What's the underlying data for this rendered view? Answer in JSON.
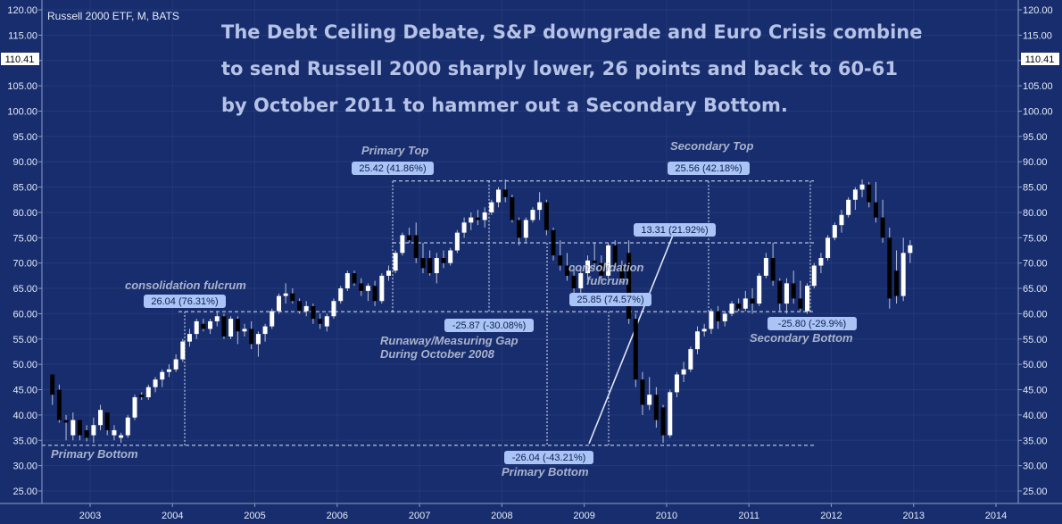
{
  "symbol_label": "Russell 2000 ETF, M, BATS",
  "title_lines": [
    "The Debt Ceiling Debate, S&P downgrade and Euro Crisis combine",
    "to send Russell 2000 sharply lower, 26 points and back to 60-61",
    "by October 2011 to hammer out a Secondary Bottom."
  ],
  "colors": {
    "background": "#172d6e",
    "grid_line": "#ffffff",
    "up_candle": "#ffffff",
    "down_candle": "#000000",
    "badge": "#a9c4f5",
    "annotation": "#a9b3cc"
  },
  "price_tag": "110.41",
  "annotations": {
    "primary_top": "Primary Top",
    "secondary_top": "Secondary Top",
    "consolidation_1": "consolidation fulcrum",
    "consolidation_2_line1": "consolidation",
    "consolidation_2_line2": "fulcrum",
    "runaway_line1": "Runaway/Measuring Gap",
    "runaway_line2": "During October 2008",
    "primary_bottom_left": "Primary Bottom",
    "primary_bottom_right": "Primary Bottom",
    "secondary_bottom": "Secondary Bottom"
  },
  "badges": {
    "b1": "26.04 (76.31%)",
    "b2": "25.42 (41.86%)",
    "b3": "-25.87 (-30.08%)",
    "b4": "-26.04 (-43.21%)",
    "b5": "25.85 (74.57%)",
    "b6": "13.31 (21.92%)",
    "b7": "25.56 (42.18%)",
    "b8": "-25.80 (-29.9%)"
  },
  "chart_data": {
    "type": "candlestick",
    "ylim": [
      22,
      121
    ],
    "y_ticks": [
      "25.00",
      "30.00",
      "35.00",
      "40.00",
      "45.00",
      "50.00",
      "55.00",
      "60.00",
      "65.00",
      "70.00",
      "75.00",
      "80.00",
      "85.00",
      "90.00",
      "95.00",
      "100.00",
      "105.00",
      "110.00",
      "115.00",
      "120.00"
    ],
    "x_ticks": [
      "2003",
      "2004",
      "2005",
      "2006",
      "2007",
      "2008",
      "2009",
      "2010",
      "2011",
      "2012",
      "2013",
      "2014"
    ],
    "horizontal_levels": [
      86.2,
      74.0,
      60.4,
      34.0
    ],
    "candles": [
      {
        "t": 2002.542,
        "o": 48.0,
        "h": 48.0,
        "l": 42.0,
        "c": 44.0
      },
      {
        "t": 2002.625,
        "o": 45.0,
        "h": 46.0,
        "l": 38.5,
        "c": 39.0
      },
      {
        "t": 2002.708,
        "o": 39.0,
        "h": 40.0,
        "l": 35.0,
        "c": 38.5
      },
      {
        "t": 2002.792,
        "o": 36.0,
        "h": 40.5,
        "l": 35.0,
        "c": 39.0
      },
      {
        "t": 2002.875,
        "o": 39.0,
        "h": 39.0,
        "l": 35.0,
        "c": 36.0
      },
      {
        "t": 2002.958,
        "o": 37.0,
        "h": 38.0,
        "l": 34.8,
        "c": 35.5
      },
      {
        "t": 2003.042,
        "o": 36.0,
        "h": 39.5,
        "l": 34.5,
        "c": 38.0
      },
      {
        "t": 2003.125,
        "o": 38.0,
        "h": 42.0,
        "l": 37.0,
        "c": 41.0
      },
      {
        "t": 2003.208,
        "o": 40.5,
        "h": 40.5,
        "l": 36.0,
        "c": 37.0
      },
      {
        "t": 2003.292,
        "o": 36.0,
        "h": 38.0,
        "l": 35.0,
        "c": 37.0
      },
      {
        "t": 2003.375,
        "o": 35.5,
        "h": 36.5,
        "l": 34.5,
        "c": 36.0
      },
      {
        "t": 2003.458,
        "o": 36.0,
        "h": 40.0,
        "l": 35.5,
        "c": 39.5
      },
      {
        "t": 2003.542,
        "o": 39.5,
        "h": 44.0,
        "l": 39.0,
        "c": 43.5
      },
      {
        "t": 2003.625,
        "o": 44.0,
        "h": 44.5,
        "l": 43.0,
        "c": 43.5
      },
      {
        "t": 2003.708,
        "o": 43.5,
        "h": 46.0,
        "l": 43.0,
        "c": 45.5
      },
      {
        "t": 2003.792,
        "o": 45.5,
        "h": 47.5,
        "l": 44.5,
        "c": 47.0
      },
      {
        "t": 2003.875,
        "o": 47.0,
        "h": 49.0,
        "l": 45.5,
        "c": 48.5
      },
      {
        "t": 2003.958,
        "o": 48.5,
        "h": 50.0,
        "l": 47.5,
        "c": 49.0
      },
      {
        "t": 2004.042,
        "o": 49.0,
        "h": 52.0,
        "l": 48.5,
        "c": 51.0
      },
      {
        "t": 2004.125,
        "o": 51.0,
        "h": 55.0,
        "l": 50.5,
        "c": 54.5
      },
      {
        "t": 2004.208,
        "o": 54.5,
        "h": 57.0,
        "l": 53.5,
        "c": 56.0
      },
      {
        "t": 2004.292,
        "o": 56.0,
        "h": 59.0,
        "l": 55.0,
        "c": 58.5
      },
      {
        "t": 2004.375,
        "o": 58.0,
        "h": 59.0,
        "l": 56.5,
        "c": 57.0
      },
      {
        "t": 2004.458,
        "o": 57.0,
        "h": 59.0,
        "l": 56.0,
        "c": 58.5
      },
      {
        "t": 2004.542,
        "o": 58.5,
        "h": 60.5,
        "l": 57.5,
        "c": 59.5
      },
      {
        "t": 2004.625,
        "o": 59.5,
        "h": 60.0,
        "l": 55.0,
        "c": 55.5
      },
      {
        "t": 2004.708,
        "o": 55.5,
        "h": 59.5,
        "l": 55.0,
        "c": 59.0
      },
      {
        "t": 2004.792,
        "o": 59.0,
        "h": 59.5,
        "l": 54.0,
        "c": 56.5
      },
      {
        "t": 2004.875,
        "o": 56.5,
        "h": 58.0,
        "l": 55.5,
        "c": 57.0
      },
      {
        "t": 2004.958,
        "o": 57.0,
        "h": 58.5,
        "l": 53.0,
        "c": 54.0
      },
      {
        "t": 2005.042,
        "o": 54.0,
        "h": 56.5,
        "l": 51.5,
        "c": 56.0
      },
      {
        "t": 2005.125,
        "o": 56.0,
        "h": 58.0,
        "l": 54.5,
        "c": 57.5
      },
      {
        "t": 2005.208,
        "o": 57.5,
        "h": 61.0,
        "l": 57.0,
        "c": 60.5
      },
      {
        "t": 2005.292,
        "o": 60.5,
        "h": 64.0,
        "l": 60.0,
        "c": 63.5
      },
      {
        "t": 2005.375,
        "o": 63.5,
        "h": 66.0,
        "l": 62.0,
        "c": 64.0
      },
      {
        "t": 2005.458,
        "o": 64.0,
        "h": 65.0,
        "l": 62.0,
        "c": 62.5
      },
      {
        "t": 2005.542,
        "o": 62.5,
        "h": 63.0,
        "l": 60.0,
        "c": 60.5
      },
      {
        "t": 2005.625,
        "o": 60.5,
        "h": 62.5,
        "l": 59.5,
        "c": 61.5
      },
      {
        "t": 2005.708,
        "o": 61.5,
        "h": 62.0,
        "l": 58.0,
        "c": 59.0
      },
      {
        "t": 2005.792,
        "o": 59.0,
        "h": 60.0,
        "l": 57.0,
        "c": 58.0
      },
      {
        "t": 2005.875,
        "o": 57.5,
        "h": 60.0,
        "l": 56.5,
        "c": 59.5
      },
      {
        "t": 2005.958,
        "o": 59.5,
        "h": 63.0,
        "l": 59.0,
        "c": 62.5
      },
      {
        "t": 2006.042,
        "o": 62.5,
        "h": 65.5,
        "l": 62.0,
        "c": 65.0
      },
      {
        "t": 2006.125,
        "o": 65.0,
        "h": 68.5,
        "l": 64.5,
        "c": 68.0
      },
      {
        "t": 2006.208,
        "o": 68.0,
        "h": 68.5,
        "l": 65.5,
        "c": 66.0
      },
      {
        "t": 2006.292,
        "o": 66.0,
        "h": 67.0,
        "l": 63.5,
        "c": 64.5
      },
      {
        "t": 2006.375,
        "o": 64.5,
        "h": 66.0,
        "l": 62.5,
        "c": 65.5
      },
      {
        "t": 2006.458,
        "o": 65.5,
        "h": 66.5,
        "l": 61.5,
        "c": 62.5
      },
      {
        "t": 2006.542,
        "o": 62.5,
        "h": 68.0,
        "l": 62.0,
        "c": 67.5
      },
      {
        "t": 2006.625,
        "o": 67.5,
        "h": 69.5,
        "l": 66.5,
        "c": 68.5
      },
      {
        "t": 2006.708,
        "o": 68.5,
        "h": 72.5,
        "l": 68.0,
        "c": 72.0
      },
      {
        "t": 2006.792,
        "o": 72.0,
        "h": 76.0,
        "l": 71.5,
        "c": 75.5
      },
      {
        "t": 2006.875,
        "o": 75.5,
        "h": 77.0,
        "l": 74.0,
        "c": 74.5
      },
      {
        "t": 2006.958,
        "o": 75.5,
        "h": 78.0,
        "l": 70.0,
        "c": 71.0
      },
      {
        "t": 2007.042,
        "o": 71.0,
        "h": 74.0,
        "l": 68.0,
        "c": 69.0
      },
      {
        "t": 2007.125,
        "o": 71.0,
        "h": 72.5,
        "l": 67.5,
        "c": 68.0
      },
      {
        "t": 2007.208,
        "o": 68.0,
        "h": 72.0,
        "l": 66.0,
        "c": 71.0
      },
      {
        "t": 2007.292,
        "o": 71.0,
        "h": 72.5,
        "l": 69.0,
        "c": 70.0
      },
      {
        "t": 2007.375,
        "o": 70.0,
        "h": 73.0,
        "l": 69.5,
        "c": 72.5
      },
      {
        "t": 2007.458,
        "o": 72.5,
        "h": 76.5,
        "l": 72.0,
        "c": 76.0
      },
      {
        "t": 2007.542,
        "o": 76.0,
        "h": 79.0,
        "l": 75.0,
        "c": 78.0
      },
      {
        "t": 2007.625,
        "o": 78.0,
        "h": 80.0,
        "l": 76.5,
        "c": 79.0
      },
      {
        "t": 2007.708,
        "o": 79.0,
        "h": 80.5,
        "l": 77.5,
        "c": 78.5
      },
      {
        "t": 2007.792,
        "o": 78.5,
        "h": 81.0,
        "l": 77.0,
        "c": 80.0
      },
      {
        "t": 2007.875,
        "o": 80.0,
        "h": 82.5,
        "l": 79.5,
        "c": 82.0
      },
      {
        "t": 2007.958,
        "o": 82.0,
        "h": 85.0,
        "l": 81.0,
        "c": 84.5
      },
      {
        "t": 2008.042,
        "o": 84.5,
        "h": 86.5,
        "l": 82.0,
        "c": 83.0
      },
      {
        "t": 2008.125,
        "o": 83.0,
        "h": 83.5,
        "l": 78.0,
        "c": 78.5
      },
      {
        "t": 2008.208,
        "o": 78.5,
        "h": 79.0,
        "l": 73.5,
        "c": 75.0
      },
      {
        "t": 2008.292,
        "o": 75.0,
        "h": 79.0,
        "l": 74.0,
        "c": 78.5
      },
      {
        "t": 2008.375,
        "o": 78.5,
        "h": 81.0,
        "l": 78.0,
        "c": 80.5
      },
      {
        "t": 2008.458,
        "o": 80.5,
        "h": 84.0,
        "l": 78.5,
        "c": 82.0
      },
      {
        "t": 2008.542,
        "o": 82.0,
        "h": 82.5,
        "l": 75.5,
        "c": 76.5
      },
      {
        "t": 2008.625,
        "o": 76.5,
        "h": 77.0,
        "l": 70.5,
        "c": 71.5
      },
      {
        "t": 2008.708,
        "o": 71.5,
        "h": 74.5,
        "l": 68.5,
        "c": 69.5
      },
      {
        "t": 2008.792,
        "o": 69.5,
        "h": 72.0,
        "l": 66.5,
        "c": 67.5
      },
      {
        "t": 2008.875,
        "o": 67.5,
        "h": 69.5,
        "l": 63.5,
        "c": 65.0
      },
      {
        "t": 2008.958,
        "o": 65.0,
        "h": 69.0,
        "l": 64.0,
        "c": 68.0
      },
      {
        "t": 2009.042,
        "o": 68.0,
        "h": 71.5,
        "l": 67.0,
        "c": 70.5
      },
      {
        "t": 2009.125,
        "o": 70.5,
        "h": 74.0,
        "l": 69.0,
        "c": 70.0
      },
      {
        "t": 2009.208,
        "o": 70.0,
        "h": 71.5,
        "l": 66.5,
        "c": 67.5
      },
      {
        "t": 2009.292,
        "o": 67.5,
        "h": 74.0,
        "l": 67.0,
        "c": 73.5
      },
      {
        "t": 2009.375,
        "o": 73.5,
        "h": 74.5,
        "l": 69.0,
        "c": 69.5
      },
      {
        "t": 2009.458,
        "o": 69.5,
        "h": 70.5,
        "l": 66.0,
        "c": 66.5
      },
      {
        "t": 2009.542,
        "o": 72.0,
        "h": 74.5,
        "l": 58.0,
        "c": 59.0
      },
      {
        "t": 2009.625,
        "o": 59.0,
        "h": 60.0,
        "l": 45.5,
        "c": 47.0
      },
      {
        "t": 2009.708,
        "o": 47.0,
        "h": 48.5,
        "l": 40.0,
        "c": 42.0
      },
      {
        "t": 2009.792,
        "o": 42.0,
        "h": 47.5,
        "l": 41.0,
        "c": 44.0
      },
      {
        "t": 2009.875,
        "o": 44.0,
        "h": 45.5,
        "l": 37.5,
        "c": 39.0
      },
      {
        "t": 2009.958,
        "o": 41.5,
        "h": 42.0,
        "l": 34.5,
        "c": 36.0
      },
      {
        "t": 2010.042,
        "o": 36.0,
        "h": 45.0,
        "l": 35.5,
        "c": 44.5
      },
      {
        "t": 2010.125,
        "o": 44.5,
        "h": 48.5,
        "l": 43.5,
        "c": 48.0
      },
      {
        "t": 2010.208,
        "o": 48.0,
        "h": 50.5,
        "l": 46.5,
        "c": 49.0
      },
      {
        "t": 2010.292,
        "o": 49.0,
        "h": 53.5,
        "l": 48.5,
        "c": 53.0
      },
      {
        "t": 2010.375,
        "o": 53.0,
        "h": 57.5,
        "l": 52.0,
        "c": 56.5
      },
      {
        "t": 2010.458,
        "o": 56.5,
        "h": 58.0,
        "l": 55.5,
        "c": 57.0
      },
      {
        "t": 2010.542,
        "o": 57.0,
        "h": 61.0,
        "l": 56.0,
        "c": 60.5
      },
      {
        "t": 2010.625,
        "o": 60.5,
        "h": 61.5,
        "l": 57.0,
        "c": 58.5
      },
      {
        "t": 2010.708,
        "o": 58.5,
        "h": 60.5,
        "l": 57.5,
        "c": 60.0
      },
      {
        "t": 2010.792,
        "o": 60.0,
        "h": 62.5,
        "l": 59.5,
        "c": 62.0
      },
      {
        "t": 2010.875,
        "o": 62.0,
        "h": 63.0,
        "l": 60.5,
        "c": 61.0
      },
      {
        "t": 2010.958,
        "o": 61.0,
        "h": 64.5,
        "l": 60.5,
        "c": 63.0
      },
      {
        "t": 2011.042,
        "o": 63.0,
        "h": 65.0,
        "l": 60.0,
        "c": 62.0
      },
      {
        "t": 2011.125,
        "o": 62.0,
        "h": 68.0,
        "l": 61.5,
        "c": 67.5
      },
      {
        "t": 2011.208,
        "o": 67.5,
        "h": 72.0,
        "l": 67.0,
        "c": 71.0
      },
      {
        "t": 2011.292,
        "o": 71.0,
        "h": 74.0,
        "l": 65.5,
        "c": 66.5
      },
      {
        "t": 2011.375,
        "o": 66.5,
        "h": 67.0,
        "l": 60.5,
        "c": 62.0
      },
      {
        "t": 2011.458,
        "o": 62.0,
        "h": 67.0,
        "l": 60.0,
        "c": 66.0
      },
      {
        "t": 2011.542,
        "o": 66.0,
        "h": 68.5,
        "l": 62.0,
        "c": 63.0
      },
      {
        "t": 2011.625,
        "o": 63.0,
        "h": 66.5,
        "l": 60.5,
        "c": 61.0
      },
      {
        "t": 2011.708,
        "o": 60.5,
        "h": 66.0,
        "l": 60.0,
        "c": 65.5
      },
      {
        "t": 2011.792,
        "o": 65.5,
        "h": 70.0,
        "l": 65.0,
        "c": 69.5
      },
      {
        "t": 2011.875,
        "o": 69.5,
        "h": 72.0,
        "l": 68.0,
        "c": 71.0
      },
      {
        "t": 2011.958,
        "o": 71.0,
        "h": 75.5,
        "l": 70.5,
        "c": 75.0
      },
      {
        "t": 2012.042,
        "o": 75.0,
        "h": 78.0,
        "l": 74.5,
        "c": 77.5
      },
      {
        "t": 2012.125,
        "o": 77.5,
        "h": 80.5,
        "l": 76.0,
        "c": 79.5
      },
      {
        "t": 2012.208,
        "o": 79.5,
        "h": 83.0,
        "l": 79.0,
        "c": 82.5
      },
      {
        "t": 2012.292,
        "o": 82.5,
        "h": 85.0,
        "l": 80.5,
        "c": 84.5
      },
      {
        "t": 2012.375,
        "o": 84.5,
        "h": 86.5,
        "l": 83.0,
        "c": 85.5
      },
      {
        "t": 2012.458,
        "o": 85.5,
        "h": 86.0,
        "l": 81.0,
        "c": 82.0
      },
      {
        "t": 2012.542,
        "o": 82.0,
        "h": 86.0,
        "l": 78.0,
        "c": 79.0
      },
      {
        "t": 2012.625,
        "o": 79.0,
        "h": 82.5,
        "l": 74.0,
        "c": 75.0
      },
      {
        "t": 2012.708,
        "o": 75.0,
        "h": 77.0,
        "l": 61.0,
        "c": 63.0
      },
      {
        "t": 2012.792,
        "o": 68.5,
        "h": 72.5,
        "l": 62.0,
        "c": 63.5
      },
      {
        "t": 2012.875,
        "o": 63.5,
        "h": 75.0,
        "l": 62.5,
        "c": 72.0
      },
      {
        "t": 2012.958,
        "o": 72.0,
        "h": 74.5,
        "l": 70.0,
        "c": 73.5
      }
    ]
  }
}
